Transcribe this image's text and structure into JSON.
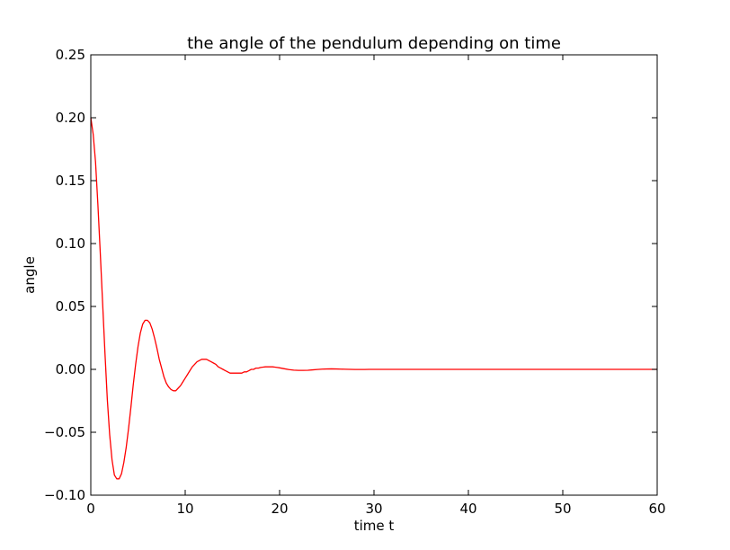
{
  "chart_data": {
    "type": "line",
    "title": "the angle of the pendulum depending on time",
    "xlabel": "time t",
    "ylabel": "angle",
    "xlim": [
      0,
      60
    ],
    "ylim": [
      -0.1,
      0.25
    ],
    "xticks": [
      "0",
      "10",
      "20",
      "30",
      "40",
      "50",
      "60"
    ],
    "yticks": [
      "−0.10",
      "−0.05",
      "0.00",
      "0.05",
      "0.10",
      "0.15",
      "0.20",
      "0.25"
    ],
    "grid": false,
    "legend": "none",
    "series": [
      {
        "color": "#ff0000",
        "x": [
          0,
          0.25,
          0.5,
          0.75,
          1,
          1.25,
          1.5,
          1.75,
          2,
          2.25,
          2.5,
          2.75,
          3,
          3.25,
          3.5,
          3.75,
          4,
          4.25,
          4.5,
          4.75,
          5,
          5.25,
          5.5,
          5.75,
          6,
          6.25,
          6.5,
          6.75,
          7,
          7.25,
          7.5,
          7.75,
          8,
          8.25,
          8.5,
          8.75,
          9,
          9.25,
          9.5,
          9.75,
          10,
          10.25,
          10.5,
          10.75,
          11,
          11.25,
          11.5,
          11.75,
          12,
          12.25,
          12.5,
          12.75,
          13,
          13.25,
          13.5,
          13.75,
          14,
          14.25,
          14.5,
          14.75,
          15,
          15.25,
          15.5,
          15.75,
          16,
          16.25,
          16.5,
          16.75,
          17,
          17.25,
          17.5,
          17.75,
          18,
          18.25,
          18.5,
          18.75,
          19,
          19.25,
          19.5,
          19.75,
          20,
          20.5,
          21,
          21.5,
          22,
          22.5,
          23,
          23.5,
          24,
          24.5,
          25,
          25.5,
          26,
          26.5,
          27,
          27.5,
          28,
          28.5,
          29,
          29.5,
          30,
          35,
          40,
          45,
          50,
          55,
          60
        ],
        "y": [
          0.2,
          0.187,
          0.165,
          0.131,
          0.093,
          0.053,
          0.013,
          -0.024,
          -0.052,
          -0.072,
          -0.084,
          -0.087,
          -0.087,
          -0.083,
          -0.074,
          -0.062,
          -0.047,
          -0.03,
          -0.012,
          0.004,
          0.018,
          0.029,
          0.036,
          0.039,
          0.039,
          0.037,
          0.032,
          0.025,
          0.017,
          0.008,
          0.001,
          -0.006,
          -0.011,
          -0.014,
          -0.016,
          -0.017,
          -0.017,
          -0.015,
          -0.013,
          -0.01,
          -0.007,
          -0.004,
          -0.001,
          0.002,
          0.004,
          0.006,
          0.007,
          0.008,
          0.008,
          0.008,
          0.007,
          0.006,
          0.005,
          0.004,
          0.002,
          0.001,
          -0.0,
          -0.001,
          -0.002,
          -0.003,
          -0.003,
          -0.003,
          -0.003,
          -0.003,
          -0.003,
          -0.002,
          -0.002,
          -0.001,
          -0.0,
          0.0,
          0.001,
          0.001,
          0.0015,
          0.0018,
          0.002,
          0.002,
          0.002,
          0.002,
          0.0018,
          0.0015,
          0.0012,
          0.0005,
          -0.0002,
          -0.0006,
          -0.0008,
          -0.0008,
          -0.0007,
          -0.0004,
          -0.0001,
          0.0002,
          0.0003,
          0.0004,
          0.0003,
          0.0002,
          0.0001,
          0.0,
          -0.0001,
          -0.0001,
          -0.0001,
          0.0,
          0.0,
          0.0,
          0.0,
          0.0,
          0.0,
          0.0,
          0.0
        ]
      }
    ]
  }
}
